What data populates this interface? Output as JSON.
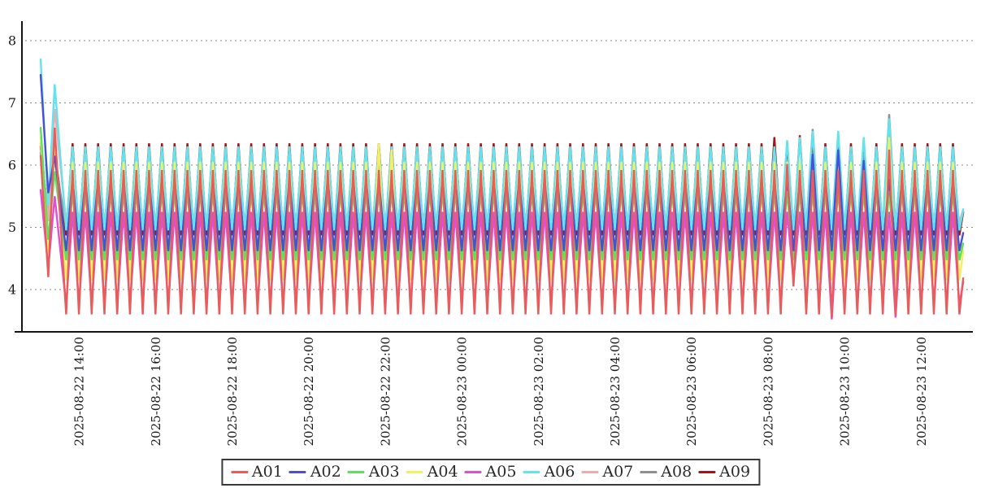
{
  "chart_data": {
    "type": "line",
    "title": "",
    "background": "#ffffff",
    "grid": "horizontal-dashed",
    "legend_position": "bottom-center",
    "x_axis": {
      "start_time": "2025-08-22 13:00",
      "end_time": "2025-08-23 13:06",
      "tick_interval_hours": 2,
      "label_rotation_degrees": -90,
      "tick_labels": [
        "2025-08-22 14:00",
        "2025-08-22 16:00",
        "2025-08-22 18:00",
        "2025-08-22 20:00",
        "2025-08-22 22:00",
        "2025-08-23 00:00",
        "2025-08-23 02:00",
        "2025-08-23 04:00",
        "2025-08-23 06:00",
        "2025-08-23 08:00",
        "2025-08-23 10:00",
        "2025-08-23 12:00"
      ]
    },
    "y_axis": {
      "ticks": [
        8,
        7,
        6,
        5,
        4
      ],
      "ylim": [
        3.3,
        8.4
      ]
    },
    "series": [
      {
        "name": "A01",
        "color": "#e85c5c",
        "trough": 3.6,
        "peak": 5.92
      },
      {
        "name": "A02",
        "color": "#4a50d2",
        "trough": 4.62,
        "peak": 5.78
      },
      {
        "name": "A03",
        "color": "#5ee05e",
        "trough": 4.47,
        "peak": 5.55
      },
      {
        "name": "A04",
        "color": "#f2ef60",
        "trough": 4.15,
        "peak": 6.05
      },
      {
        "name": "A05",
        "color": "#dd4fd4",
        "trough": 3.75,
        "peak": 5.25
      },
      {
        "name": "A06",
        "color": "#62e4ef",
        "trough": 4.95,
        "peak": 6.3
      },
      {
        "name": "A07",
        "color": "#efabab",
        "trough": 5.08,
        "peak": 5.92
      },
      {
        "name": "A08",
        "color": "#8f8f8f",
        "trough": 5.0,
        "peak": 6.02
      },
      {
        "name": "A09",
        "color": "#a31414",
        "trough": 4.87,
        "peak": 6.35
      }
    ],
    "sampling": {
      "minutes_step": 10,
      "period_minutes": 20,
      "regular_from_minute": 40,
      "end_minute": 1440,
      "end_tail": {
        "minutes": 1446,
        "fraction_to_peak": 0.25
      }
    },
    "transient": [
      {
        "minutes": 0,
        "values": {
          "A01": 6.15,
          "A02": 7.45,
          "A03": 6.6,
          "A04": 6.45,
          "A05": 5.6,
          "A06": 7.7,
          "A07": 6.35,
          "A08": 6.2,
          "A09": 6.3
        }
      },
      {
        "minutes": 12,
        "values": {
          "A01": 4.2,
          "A02": 5.55,
          "A03": 4.8,
          "A04": 4.6,
          "A05": 4.35,
          "A06": 5.35,
          "A07": 5.1,
          "A08": 5.2,
          "A09": 5.15
        }
      },
      {
        "minutes": 22,
        "values": {
          "A01": 6.6,
          "A02": 6.15,
          "A03": 5.9,
          "A04": 6.3,
          "A05": 5.5,
          "A06": 7.3,
          "A07": 6.9,
          "A08": 6.1,
          "A09": 6.2
        }
      }
    ],
    "anomalies": {
      "530": {
        "A04": 6.35
      },
      "550": {
        "A04": 6.25
      },
      "1150": {
        "A09": 6.45
      },
      "1170": {
        "A01": 6.02,
        "A06": 6.4
      },
      "1180": {
        "A01": 4.05,
        "A05": 4.15
      },
      "1190": {
        "A06": 6.45,
        "A09": 6.48
      },
      "1210": {
        "A02": 6.18,
        "A06": 6.55,
        "A08": 6.58,
        "A09": 6.45
      },
      "1240": {
        "A01": 3.55,
        "A05": 3.52
      },
      "1250": {
        "A02": 6.25,
        "A06": 6.55
      },
      "1290": {
        "A02": 6.08,
        "A06": 6.45,
        "A08": 6.18
      },
      "1330": {
        "A01": 6.25,
        "A04": 6.45,
        "A06": 6.75,
        "A08": 6.82,
        "A09": 6.5
      },
      "1340": {
        "A01": 3.58,
        "A05": 3.55
      }
    },
    "colors": {
      "axis": "#141414",
      "gridline": "#8a8a8a",
      "tick_text": "#1a1a1a"
    }
  }
}
